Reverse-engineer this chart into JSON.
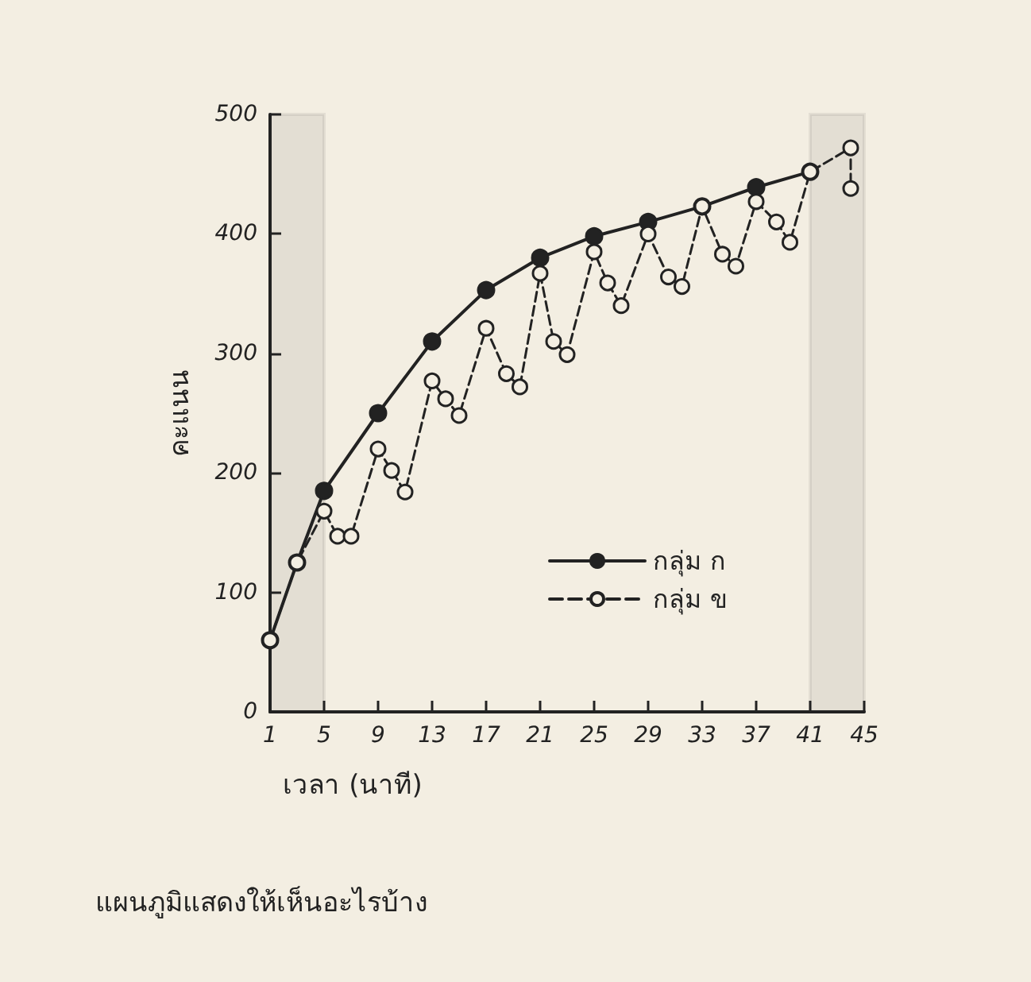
{
  "chart_data": {
    "type": "line",
    "xlabel": "เวลา (นาที)",
    "ylabel": "คะแนน",
    "annotations": [
      "แผนภูมิแสดงให้เห็นอะไรบ้าง"
    ],
    "xlim": [
      1,
      45
    ],
    "xticks": [
      1,
      5,
      9,
      13,
      17,
      21,
      25,
      29,
      33,
      37,
      41,
      45
    ],
    "ylim": [
      0,
      500
    ],
    "yticks": [
      0,
      100,
      200,
      300,
      400,
      500
    ],
    "grid": false,
    "legend": "right",
    "bands": [
      {
        "axis": "x",
        "from": 1,
        "to": 5,
        "color": "#222222"
      },
      {
        "axis": "x",
        "from": 41,
        "to": 45,
        "color": "#222222"
      }
    ],
    "series": [
      {
        "name": "กลุ่ม ก",
        "color": "#222222",
        "marker": "circle",
        "line_style": "solid",
        "x": [
          1,
          3,
          5,
          9,
          13,
          17,
          21,
          25,
          29,
          33,
          37,
          41
        ],
        "values": [
          60,
          125,
          185,
          250,
          310,
          353,
          380,
          398,
          410,
          423,
          439,
          452
        ]
      },
      {
        "name": "กลุ่ม ข",
        "color": "#222222",
        "marker": "circle",
        "line_style": "dashed",
        "x": [
          1,
          3,
          5,
          6,
          7,
          9,
          10,
          11,
          13,
          14,
          15,
          17,
          18.5,
          19.5,
          21,
          22,
          23,
          25,
          26,
          27,
          29,
          30.5,
          31.5,
          33,
          34.5,
          35.5,
          37,
          38.5,
          39.5,
          41,
          44,
          44
        ],
        "values": [
          60,
          125,
          168,
          147,
          147,
          220,
          202,
          184,
          277,
          262,
          248,
          321,
          283,
          272,
          367,
          310,
          299,
          385,
          359,
          340,
          400,
          364,
          356,
          423,
          383,
          373,
          427,
          410,
          393,
          452,
          472,
          438
        ]
      }
    ]
  }
}
